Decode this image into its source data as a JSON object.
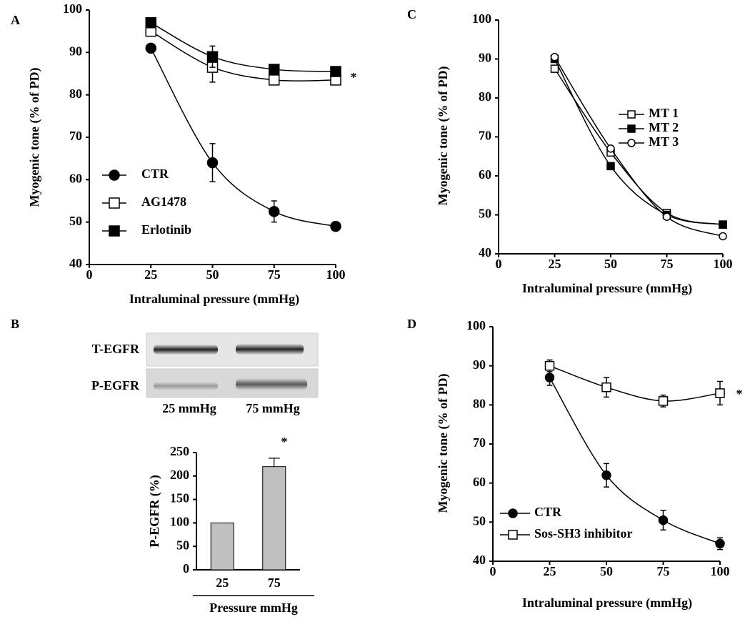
{
  "chart_data": [
    {
      "type": "line",
      "panel": "A",
      "xlabel": "Intraluminal pressure (mmHg)",
      "ylabel": "Myogenic tone (% of PD)",
      "x": [
        25,
        50,
        75,
        100
      ],
      "xlim": [
        0,
        100
      ],
      "xticks": [
        0,
        25,
        50,
        75,
        100
      ],
      "ylim": [
        40,
        100
      ],
      "yticks": [
        40,
        50,
        60,
        70,
        80,
        90,
        100
      ],
      "annotation": "*",
      "series": [
        {
          "name": "CTR",
          "color": "#000000",
          "marker": "circle-filled",
          "values": [
            91,
            64,
            52.5,
            49
          ],
          "errors": [
            1,
            4.5,
            2.5,
            0.5
          ]
        },
        {
          "name": "AG1478",
          "color": "#000000",
          "marker": "square-open",
          "values": [
            95,
            86.5,
            83.5,
            83.5
          ],
          "errors": [
            null,
            3.5,
            null,
            null
          ]
        },
        {
          "name": "Erlotinib",
          "color": "#000000",
          "marker": "square-filled",
          "values": [
            97,
            89,
            86,
            85.5
          ],
          "errors": [
            null,
            2.5,
            null,
            null
          ]
        }
      ]
    },
    {
      "type": "bar",
      "panel": "B",
      "blot_rows": [
        "T-EGFR",
        "P-EGFR"
      ],
      "blot_lanes": [
        "25 mmHg",
        "75 mmHg"
      ],
      "xlabel": "Pressure mmHg",
      "ylabel": "P-EGFR (%)",
      "categories": [
        "25",
        "75"
      ],
      "values": [
        100,
        220
      ],
      "errors": [
        null,
        18
      ],
      "color": "#c0c0c0",
      "ylim": [
        0,
        250
      ],
      "yticks": [
        0,
        50,
        100,
        150,
        200,
        250
      ],
      "annotation": "*"
    },
    {
      "type": "line",
      "panel": "C",
      "xlabel": "Intraluminal pressure (mmHg)",
      "ylabel": "Myogenic tone (% of PD)",
      "x": [
        25,
        50,
        75,
        100
      ],
      "xlim": [
        0,
        100
      ],
      "xticks": [
        0,
        25,
        50,
        75,
        100
      ],
      "ylim": [
        40,
        100
      ],
      "yticks": [
        40,
        50,
        60,
        70,
        80,
        90,
        100
      ],
      "series": [
        {
          "name": "MT 1",
          "color": "#000000",
          "marker": "square-open",
          "values": [
            87.5,
            66,
            50.5,
            47.5
          ]
        },
        {
          "name": "MT 2",
          "color": "#000000",
          "marker": "square-filled",
          "values": [
            90,
            62.5,
            50,
            47.5
          ]
        },
        {
          "name": "MT 3",
          "color": "#000000",
          "marker": "circle-open",
          "values": [
            90.5,
            67,
            49.5,
            44.5
          ]
        }
      ]
    },
    {
      "type": "line",
      "panel": "D",
      "xlabel": "Intraluminal pressure (mmHg)",
      "ylabel": "Myogenic tone (% of PD)",
      "x": [
        25,
        50,
        75,
        100
      ],
      "xlim": [
        0,
        100
      ],
      "xticks": [
        0,
        25,
        50,
        75,
        100
      ],
      "ylim": [
        40,
        100
      ],
      "yticks": [
        40,
        50,
        60,
        70,
        80,
        90,
        100
      ],
      "annotation": "*",
      "series": [
        {
          "name": "CTR",
          "color": "#000000",
          "marker": "circle-filled",
          "values": [
            87,
            62,
            50.5,
            44.5
          ],
          "errors": [
            2,
            3,
            2.5,
            1.5
          ]
        },
        {
          "name": "Sos-SH3 inhibitor",
          "color": "#000000",
          "marker": "square-open",
          "values": [
            90,
            84.5,
            81,
            83
          ],
          "errors": [
            1.5,
            2.5,
            1.5,
            3
          ]
        }
      ]
    }
  ]
}
